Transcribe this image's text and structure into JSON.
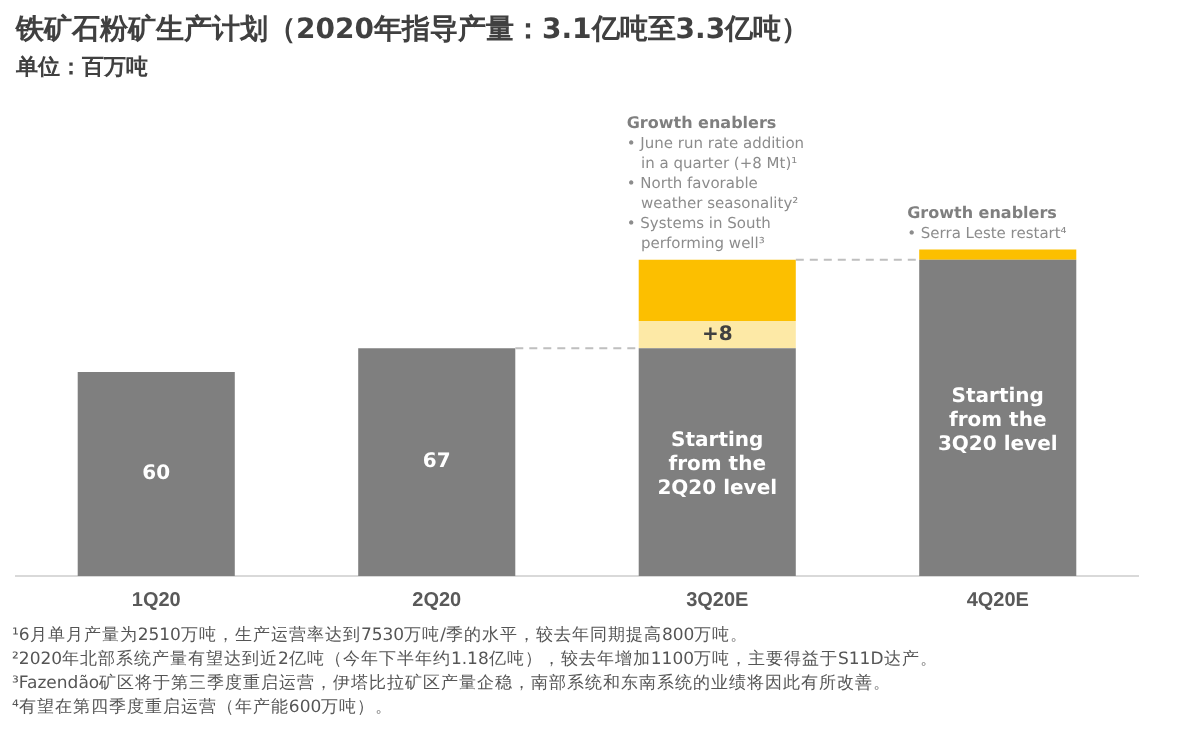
{
  "chart_data": {
    "type": "bar",
    "title": "铁矿石粉矿生产计划（2020年指导产量：3.1亿吨至3.3亿吨）",
    "subtitle": "单位：百万吨",
    "stacked": true,
    "categories": [
      "1Q20",
      "2Q20",
      "3Q20E",
      "4Q20E"
    ],
    "series": [
      {
        "color": "#7f7f7f",
        "values": [
          60,
          67,
          67,
          93
        ],
        "value_labels": [
          "60",
          "67",
          null,
          null
        ]
      },
      {
        "color": "#fde9a6",
        "values": [
          null,
          null,
          8,
          null
        ],
        "value_labels": [
          null,
          null,
          "+8",
          null
        ]
      },
      {
        "color": "#fcbf00",
        "values": [
          null,
          null,
          18,
          3
        ]
      }
    ],
    "tick_labels": "x",
    "grid": false,
    "legend": false,
    "ref_lines": [
      {
        "axis": "y",
        "value": 67,
        "color": "#bfbfbf",
        "line_style": "dashed"
      },
      {
        "axis": "y",
        "value": 93,
        "color": "#bfbfbf",
        "line_style": "dashed"
      }
    ],
    "annotations": [
      {
        "text": "Growth enablers • June run rate addition in a quarter (+8 Mt)¹ • North favorable weather seasonality² • Systems in South performing well³",
        "x": "3Q20E",
        "y": 93
      },
      {
        "text": "Growth enablers • Serra Leste restart⁴",
        "x": "4Q20E",
        "y": 96
      },
      "Starting from the 2Q20 level",
      "Starting from the 3Q20 level",
      "¹6月单月产量为2510万吨，生产运营率达到7530万吨/季的水平，较去年同期提高800万吨。",
      "²2020年北部系统产量有望达到近2亿吨（今年下半年约1.18亿吨），较去年增加1100万吨，主要得益于S11D达产。",
      "³Fazendão矿区将于第三季度重启运营，伊塔比拉矿区产量企稳，南部系统和东南系统的业绩将因此有所改善。",
      "⁴有望在第四季度重启运营（年产能600万吨）。"
    ]
  }
}
